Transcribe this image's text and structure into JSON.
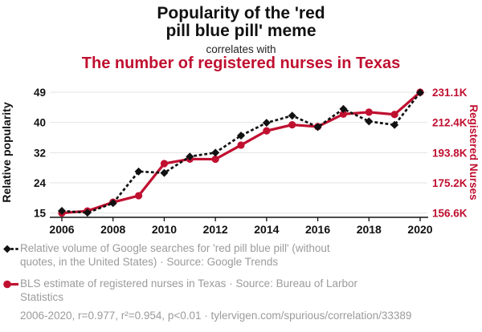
{
  "header": {
    "title_lines": [
      "Popularity of the 'red",
      "pill blue pill' meme"
    ],
    "connector": "correlates with",
    "subtitle": "The number of registered nurses in Texas"
  },
  "colors": {
    "accent_red": "#c01030",
    "series_black": "#111111",
    "muted_text": "#9b9b9b",
    "gridline": "#e3e3e3"
  },
  "chart_data": {
    "type": "line",
    "x": [
      2006,
      2007,
      2008,
      2009,
      2010,
      2011,
      2012,
      2013,
      2014,
      2015,
      2016,
      2017,
      2018,
      2019,
      2020
    ],
    "x_tick_labels": [
      "2006",
      "2008",
      "2010",
      "2012",
      "2014",
      "2016",
      "2018",
      "2020"
    ],
    "series": [
      {
        "name": "Relative volume of Google searches for 'red pill blue pill' (without quotes, in the United States)",
        "source": "Google Trends",
        "axis": "left",
        "color": "#111111",
        "marker": "diamond",
        "line_style": "dashed",
        "values": [
          15.6,
          15.1,
          17.8,
          26.7,
          26.3,
          30.9,
          32.0,
          36.8,
          40.4,
          42.4,
          39.2,
          44.3,
          40.8,
          39.8,
          48.9
        ]
      },
      {
        "name": "BLS estimate of registered nurses in Texas",
        "source": "Bureau of Larbor Statistics",
        "axis": "right",
        "color": "#c01030",
        "marker": "circle",
        "line_style": "solid",
        "units": "thousands",
        "values": [
          156.6,
          157.9,
          163.3,
          167.3,
          187.1,
          189.9,
          189.8,
          198.5,
          207.3,
          211.0,
          209.9,
          217.6,
          218.8,
          217.4,
          231.1
        ]
      }
    ],
    "left_axis": {
      "label": "Relative popularity",
      "min": 15,
      "max": 49,
      "tick_labels": [
        "15",
        "24",
        "32",
        "40",
        "49"
      ]
    },
    "right_axis": {
      "label": "Registered Nurses",
      "min": 156.6,
      "max": 231.1,
      "tick_labels": [
        "156.6K",
        "175.2K",
        "193.8K",
        "212.4K",
        "231.1K"
      ]
    },
    "grid": "horizontal",
    "legend_position": "bottom"
  },
  "legend": {
    "items": [
      {
        "marker": "black-diamond-dashed",
        "lines": [
          "Relative volume of Google searches for 'red pill blue pill' (without",
          "quotes, in the United States) · Source: Google Trends"
        ]
      },
      {
        "marker": "red-circle-solid",
        "lines": [
          "BLS estimate of registered nurses in Texas · Source: Bureau of Larbor",
          "Statistics"
        ]
      }
    ]
  },
  "footer": {
    "text": "2006-2020, r=0.977, r²=0.954, p<0.01 · tylervigen.com/spurious/correlation/33389"
  }
}
